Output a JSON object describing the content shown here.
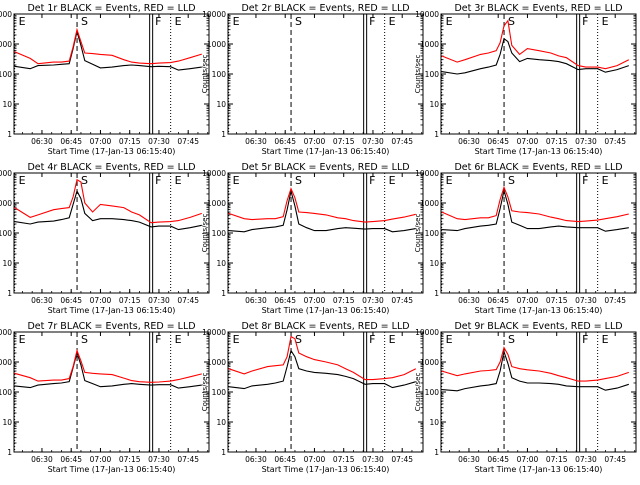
{
  "y_axis_label": "Counts/sec",
  "x_axis_label": "Start Time (17-Jan-13 06:15:40)",
  "x_ticks": [
    "06:30",
    "06:45",
    "07:00",
    "07:15",
    "07:30",
    "07:45"
  ],
  "y_ticks": [
    "1",
    "10",
    "100",
    "1000",
    "10000"
  ],
  "colors": {
    "events": "#000000",
    "lld": "#ff0000"
  },
  "chart_data": [
    {
      "type": "line",
      "title": "Det 1r BLACK = Events, RED = LLD",
      "markers": [
        {
          "label": "E",
          "t": "06:16"
        },
        {
          "label": "S",
          "t": "06:48"
        },
        {
          "label": "F",
          "t": "07:26"
        },
        {
          "label": "E",
          "t": "07:36"
        }
      ],
      "x": [
        "06:16",
        "06:24",
        "06:28",
        "06:36",
        "06:40",
        "06:44",
        "06:46",
        "06:48",
        "06:50",
        "06:52",
        "06:56",
        "07:00",
        "07:06",
        "07:12",
        "07:16",
        "07:20",
        "07:26",
        "07:30",
        "07:36",
        "07:40",
        "07:46",
        "07:52"
      ],
      "series": [
        {
          "name": "BLACK = Events",
          "values": [
            180,
            150,
            190,
            200,
            210,
            220,
            700,
            2600,
            900,
            280,
            210,
            160,
            170,
            190,
            200,
            190,
            175,
            180,
            175,
            135,
            150,
            170
          ]
        },
        {
          "name": "RED = LLD",
          "values": [
            550,
            330,
            220,
            250,
            250,
            270,
            800,
            3000,
            1200,
            500,
            480,
            450,
            420,
            300,
            250,
            230,
            220,
            230,
            240,
            270,
            350,
            460
          ]
        }
      ]
    },
    {
      "type": "line",
      "title": "Det 2r BLACK = Events, RED = LLD",
      "markers": [
        {
          "label": "E",
          "t": "06:16"
        },
        {
          "label": "S",
          "t": "06:48"
        },
        {
          "label": "F",
          "t": "07:26"
        },
        {
          "label": "E",
          "t": "07:36"
        }
      ],
      "x": [],
      "series": []
    },
    {
      "type": "line",
      "title": "Det 3r BLACK = Events, RED = LLD",
      "markers": [
        {
          "label": "E",
          "t": "06:16"
        },
        {
          "label": "S",
          "t": "06:48"
        },
        {
          "label": "F",
          "t": "07:26"
        },
        {
          "label": "E",
          "t": "07:36"
        }
      ],
      "x": [
        "06:16",
        "06:24",
        "06:28",
        "06:36",
        "06:40",
        "06:44",
        "06:46",
        "06:48",
        "06:50",
        "06:52",
        "06:56",
        "07:00",
        "07:06",
        "07:12",
        "07:16",
        "07:20",
        "07:26",
        "07:30",
        "07:36",
        "07:40",
        "07:46",
        "07:52"
      ],
      "series": [
        {
          "name": "BLACK = Events",
          "values": [
            120,
            100,
            110,
            150,
            170,
            200,
            450,
            1500,
            1200,
            500,
            260,
            330,
            300,
            280,
            260,
            220,
            140,
            150,
            150,
            115,
            140,
            190
          ]
        },
        {
          "name": "RED = LLD",
          "values": [
            400,
            250,
            300,
            450,
            500,
            600,
            1100,
            4000,
            6000,
            900,
            450,
            700,
            600,
            500,
            400,
            350,
            190,
            170,
            170,
            150,
            190,
            300
          ]
        }
      ]
    },
    {
      "type": "line",
      "title": "Det 4r BLACK = Events, RED = LLD",
      "markers": [
        {
          "label": "E",
          "t": "06:16"
        },
        {
          "label": "S",
          "t": "06:48"
        },
        {
          "label": "F",
          "t": "07:26"
        },
        {
          "label": "E",
          "t": "07:36"
        }
      ],
      "x": [
        "06:16",
        "06:24",
        "06:28",
        "06:36",
        "06:40",
        "06:44",
        "06:46",
        "06:48",
        "06:50",
        "06:52",
        "06:56",
        "07:00",
        "07:06",
        "07:12",
        "07:16",
        "07:20",
        "07:26",
        "07:30",
        "07:36",
        "07:40",
        "07:46",
        "07:52"
      ],
      "series": [
        {
          "name": "BLACK = Events",
          "values": [
            240,
            200,
            230,
            250,
            280,
            320,
            900,
            2500,
            1400,
            450,
            260,
            300,
            300,
            280,
            260,
            230,
            160,
            170,
            170,
            130,
            150,
            180
          ]
        },
        {
          "name": "RED = LLD",
          "values": [
            700,
            330,
            400,
            600,
            650,
            700,
            1600,
            6000,
            5000,
            1000,
            500,
            900,
            800,
            700,
            500,
            400,
            220,
            230,
            240,
            260,
            330,
            450
          ]
        }
      ]
    },
    {
      "type": "line",
      "title": "Det 5r BLACK = Events, RED = LLD",
      "markers": [
        {
          "label": "E",
          "t": "06:16"
        },
        {
          "label": "S",
          "t": "06:48"
        },
        {
          "label": "F",
          "t": "07:26"
        },
        {
          "label": "E",
          "t": "07:36"
        }
      ],
      "x": [
        "06:16",
        "06:24",
        "06:28",
        "06:36",
        "06:40",
        "06:44",
        "06:46",
        "06:48",
        "06:50",
        "06:52",
        "06:56",
        "07:00",
        "07:06",
        "07:12",
        "07:16",
        "07:20",
        "07:26",
        "07:30",
        "07:36",
        "07:40",
        "07:46",
        "07:52"
      ],
      "series": [
        {
          "name": "BLACK = Events",
          "values": [
            120,
            110,
            130,
            150,
            160,
            180,
            600,
            2500,
            800,
            200,
            150,
            120,
            120,
            140,
            150,
            145,
            135,
            140,
            140,
            110,
            120,
            140
          ]
        },
        {
          "name": "RED = LLD",
          "values": [
            450,
            300,
            280,
            300,
            300,
            350,
            1200,
            3000,
            1500,
            500,
            480,
            450,
            400,
            320,
            300,
            260,
            230,
            240,
            260,
            290,
            340,
            420
          ]
        }
      ]
    },
    {
      "type": "line",
      "title": "Det 6r BLACK = Events, RED = LLD",
      "markers": [
        {
          "label": "E",
          "t": "06:16"
        },
        {
          "label": "S",
          "t": "06:48"
        },
        {
          "label": "F",
          "t": "07:26"
        },
        {
          "label": "E",
          "t": "07:36"
        }
      ],
      "x": [
        "06:16",
        "06:24",
        "06:28",
        "06:36",
        "06:40",
        "06:44",
        "06:46",
        "06:48",
        "06:50",
        "06:52",
        "06:56",
        "07:00",
        "07:06",
        "07:12",
        "07:16",
        "07:20",
        "07:26",
        "07:30",
        "07:36",
        "07:40",
        "07:46",
        "07:52"
      ],
      "series": [
        {
          "name": "BLACK = Events",
          "values": [
            130,
            120,
            140,
            170,
            180,
            200,
            650,
            2600,
            900,
            230,
            180,
            140,
            140,
            160,
            170,
            160,
            150,
            150,
            150,
            115,
            130,
            150
          ]
        },
        {
          "name": "RED = LLD",
          "values": [
            500,
            300,
            280,
            320,
            320,
            380,
            1300,
            3300,
            1600,
            550,
            500,
            480,
            430,
            340,
            300,
            260,
            240,
            250,
            270,
            300,
            350,
            430
          ]
        }
      ]
    },
    {
      "type": "line",
      "title": "Det 7r BLACK = Events, RED = LLD",
      "markers": [
        {
          "label": "E",
          "t": "06:16"
        },
        {
          "label": "S",
          "t": "06:48"
        },
        {
          "label": "F",
          "t": "07:26"
        },
        {
          "label": "E",
          "t": "07:36"
        }
      ],
      "x": [
        "06:16",
        "06:24",
        "06:28",
        "06:36",
        "06:40",
        "06:44",
        "06:46",
        "06:48",
        "06:50",
        "06:52",
        "06:56",
        "07:00",
        "07:06",
        "07:12",
        "07:16",
        "07:20",
        "07:26",
        "07:30",
        "07:36",
        "07:40",
        "07:46",
        "07:52"
      ],
      "series": [
        {
          "name": "BLACK = Events",
          "values": [
            160,
            140,
            170,
            190,
            200,
            220,
            650,
            2000,
            800,
            240,
            190,
            150,
            160,
            180,
            190,
            180,
            170,
            175,
            175,
            135,
            150,
            170
          ]
        },
        {
          "name": "RED = LLD",
          "values": [
            420,
            300,
            230,
            250,
            250,
            280,
            700,
            2400,
            1100,
            450,
            420,
            400,
            380,
            290,
            240,
            220,
            210,
            215,
            230,
            260,
            320,
            400
          ]
        }
      ]
    },
    {
      "type": "line",
      "title": "Det 8r BLACK = Events, RED = LLD",
      "markers": [
        {
          "label": "E",
          "t": "06:16"
        },
        {
          "label": "S",
          "t": "06:48"
        },
        {
          "label": "F",
          "t": "07:26"
        },
        {
          "label": "E",
          "t": "07:36"
        }
      ],
      "x": [
        "06:16",
        "06:24",
        "06:28",
        "06:36",
        "06:40",
        "06:44",
        "06:46",
        "06:48",
        "06:50",
        "06:52",
        "06:56",
        "07:00",
        "07:06",
        "07:12",
        "07:16",
        "07:20",
        "07:26",
        "07:30",
        "07:36",
        "07:40",
        "07:46",
        "07:52"
      ],
      "series": [
        {
          "name": "BLACK = Events",
          "values": [
            150,
            130,
            160,
            180,
            200,
            230,
            700,
            2400,
            1500,
            600,
            500,
            450,
            420,
            380,
            330,
            280,
            180,
            190,
            190,
            140,
            170,
            220
          ]
        },
        {
          "name": "RED = LLD",
          "values": [
            600,
            400,
            500,
            700,
            750,
            800,
            1500,
            7000,
            6000,
            2000,
            1500,
            1200,
            1000,
            800,
            600,
            450,
            260,
            260,
            280,
            300,
            380,
            600
          ]
        }
      ]
    },
    {
      "type": "line",
      "title": "Det 9r BLACK = Events, RED = LLD",
      "markers": [
        {
          "label": "E",
          "t": "06:16"
        },
        {
          "label": "S",
          "t": "06:48"
        },
        {
          "label": "F",
          "t": "07:26"
        },
        {
          "label": "E",
          "t": "07:36"
        }
      ],
      "x": [
        "06:16",
        "06:24",
        "06:28",
        "06:36",
        "06:40",
        "06:44",
        "06:46",
        "06:48",
        "06:50",
        "06:52",
        "06:56",
        "07:00",
        "07:06",
        "07:12",
        "07:16",
        "07:20",
        "07:26",
        "07:30",
        "07:36",
        "07:40",
        "07:46",
        "07:52"
      ],
      "series": [
        {
          "name": "BLACK = Events",
          "values": [
            120,
            110,
            130,
            160,
            170,
            190,
            500,
            2200,
            900,
            300,
            230,
            200,
            200,
            190,
            180,
            160,
            150,
            150,
            150,
            115,
            135,
            180
          ]
        },
        {
          "name": "RED = LLD",
          "values": [
            500,
            350,
            400,
            500,
            520,
            560,
            1000,
            3000,
            1800,
            700,
            600,
            550,
            500,
            420,
            350,
            300,
            230,
            230,
            250,
            280,
            330,
            450
          ]
        }
      ]
    }
  ]
}
